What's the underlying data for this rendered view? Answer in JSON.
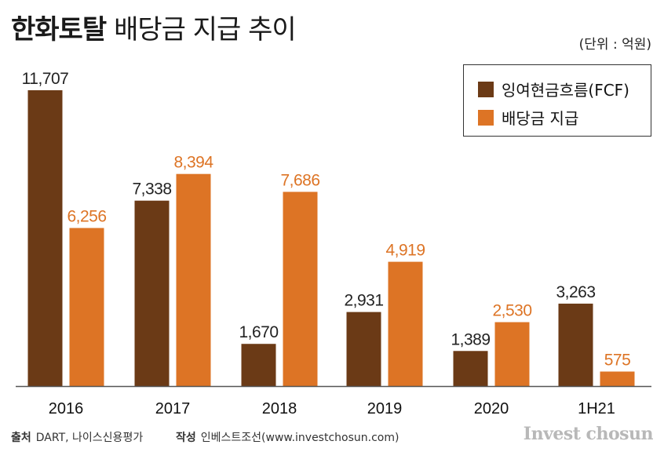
{
  "title": {
    "bold": "한화토탈",
    "light": "배당금 지급 추이"
  },
  "unit": "(단위 : 억원)",
  "legend": {
    "fcf": "잉여현금흐름(FCF)",
    "dividend": "배당금 지급"
  },
  "colors": {
    "fcf": "#6b3a16",
    "dividend": "#dd7425",
    "baseline": "#555555"
  },
  "chart_data": {
    "type": "bar",
    "categories": [
      "2016",
      "2017",
      "2018",
      "2019",
      "2020",
      "1H21"
    ],
    "series": [
      {
        "name": "잉여현금흐름(FCF)",
        "values": [
          11707,
          7338,
          1670,
          2931,
          1389,
          3263
        ],
        "labels": [
          "11,707",
          "7,338",
          "1,670",
          "2,931",
          "1,389",
          "3,263"
        ]
      },
      {
        "name": "배당금 지급",
        "values": [
          6256,
          8394,
          7686,
          4919,
          2530,
          575
        ],
        "labels": [
          "6,256",
          "8,394",
          "7,686",
          "4,919",
          "2,530",
          "575"
        ]
      }
    ],
    "ylim": [
      0,
      11707
    ],
    "grid": false,
    "legend_position": "top-right"
  },
  "footer": {
    "source_label": "출처",
    "source_text": "DART, 나이스신용평가",
    "author_label": "작성",
    "author_text": "인베스트조선(www.investchosun.com)",
    "brand": "Invest chosun"
  }
}
